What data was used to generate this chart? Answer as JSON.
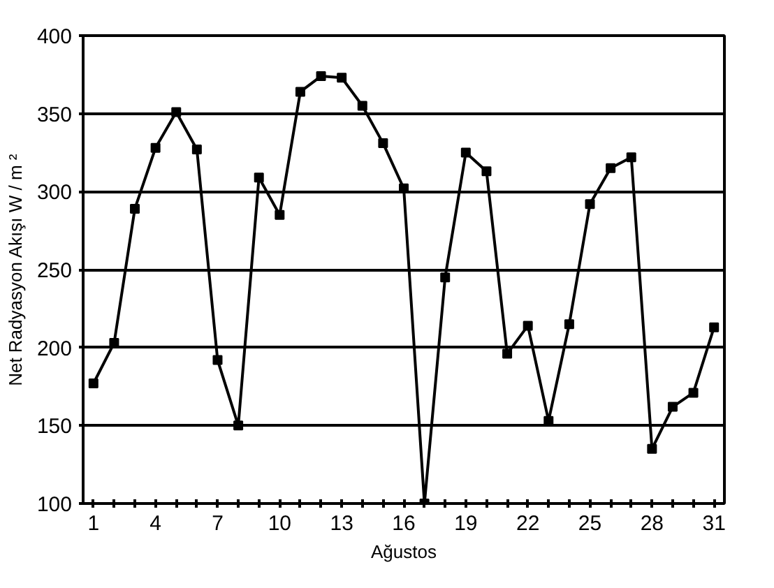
{
  "chart_data": {
    "type": "line",
    "xlabel": "Ağustos",
    "ylabel": "Net Radyasyon Akışı W / m ²",
    "x": [
      1,
      2,
      3,
      4,
      5,
      6,
      7,
      8,
      9,
      10,
      11,
      12,
      13,
      14,
      15,
      16,
      17,
      18,
      19,
      20,
      21,
      22,
      23,
      24,
      25,
      26,
      27,
      28,
      29,
      30,
      31
    ],
    "series": [
      {
        "color": "#000000",
        "values": [
          177,
          203,
          289,
          328,
          351,
          327,
          192,
          150,
          309,
          285,
          364,
          374,
          373,
          355,
          331,
          302,
          100,
          245,
          325,
          313,
          196,
          214,
          153,
          215,
          292,
          315,
          322,
          135,
          162,
          171,
          213
        ]
      }
    ],
    "xlim": [
      0.5,
      31.5
    ],
    "xticks": [
      1,
      {
        "value": 2,
        "label": null
      },
      {
        "value": 3,
        "label": null
      },
      4,
      {
        "value": 5,
        "label": null
      },
      {
        "value": 6,
        "label": null
      },
      7,
      {
        "value": 8,
        "label": null
      },
      {
        "value": 9,
        "label": null
      },
      10,
      {
        "value": 11,
        "label": null
      },
      {
        "value": 12,
        "label": null
      },
      13,
      {
        "value": 14,
        "label": null
      },
      {
        "value": 15,
        "label": null
      },
      16,
      {
        "value": 17,
        "label": null
      },
      {
        "value": 18,
        "label": null
      },
      19,
      {
        "value": 20,
        "label": null
      },
      {
        "value": 21,
        "label": null
      },
      22,
      {
        "value": 23,
        "label": null
      },
      {
        "value": 24,
        "label": null
      },
      25,
      {
        "value": 26,
        "label": null
      },
      {
        "value": 27,
        "label": null
      },
      28,
      {
        "value": 29,
        "label": null
      },
      {
        "value": 30,
        "label": null
      },
      31
    ],
    "ylim": [
      100,
      400
    ],
    "yticks": [
      100,
      150,
      200,
      250,
      300,
      350,
      400
    ],
    "grid": "y",
    "marker": "square",
    "line_style": "solid"
  }
}
